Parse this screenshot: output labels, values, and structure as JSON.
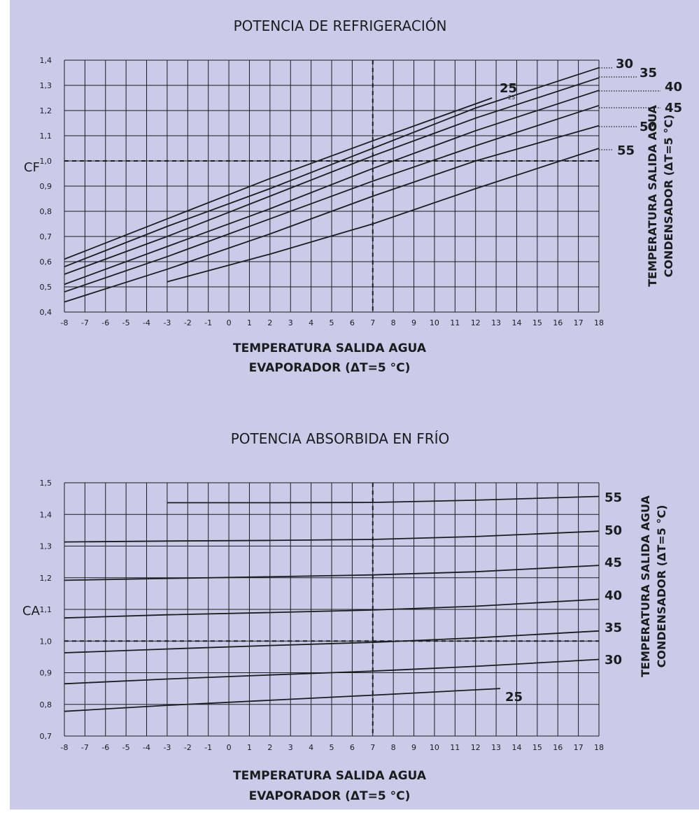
{
  "colors": {
    "background": "#c9cbe9",
    "grid": "#1c1c1c",
    "line": "#1c1c1c"
  },
  "chart_data": [
    {
      "type": "line",
      "title": "POTENCIA DE REFRIGERACIÓN",
      "ylabel": "CF",
      "xlabel": [
        "TEMPERATURA SALIDA AGUA",
        "EVAPORADOR (ΔT=5 °C)"
      ],
      "right_label": [
        "TEMPERATURA SALIDA AGUA",
        "CONDENSADOR (ΔT=5 °C)"
      ],
      "xlim": [
        -8,
        18
      ],
      "ylim": [
        0.4,
        1.4
      ],
      "x_ticks": [
        -8,
        -7,
        -6,
        -5,
        -4,
        -3,
        -2,
        -1,
        0,
        1,
        2,
        3,
        4,
        5,
        6,
        7,
        8,
        9,
        10,
        11,
        12,
        13,
        14,
        15,
        16,
        17,
        18
      ],
      "y_ticks": [
        "0,4",
        "0,5",
        "0,6",
        "0,7",
        "0,8",
        "0,9",
        "1,0",
        "1,1",
        "1,2",
        "1,3",
        "1,4"
      ],
      "grid": true,
      "reference_lines": {
        "x": 7,
        "y": 1.0
      },
      "series": [
        {
          "name": "25",
          "points": [
            [
              -8,
              0.61
            ],
            [
              -3,
              0.77
            ],
            [
              2,
              0.93
            ],
            [
              7,
              1.08
            ],
            [
              12.8,
              1.25
            ]
          ]
        },
        {
          "name": "30",
          "points": [
            [
              -8,
              0.58
            ],
            [
              -3,
              0.74
            ],
            [
              2,
              0.89
            ],
            [
              7,
              1.05
            ],
            [
              12,
              1.21
            ],
            [
              18,
              1.37
            ]
          ]
        },
        {
          "name": "35",
          "points": [
            [
              -8,
              0.55
            ],
            [
              -3,
              0.7
            ],
            [
              2,
              0.86
            ],
            [
              7,
              1.02
            ],
            [
              12,
              1.17
            ],
            [
              18,
              1.33
            ]
          ]
        },
        {
          "name": "40",
          "points": [
            [
              -8,
              0.51
            ],
            [
              -3,
              0.66
            ],
            [
              2,
              0.81
            ],
            [
              7,
              0.97
            ],
            [
              12,
              1.12
            ],
            [
              18,
              1.28
            ]
          ]
        },
        {
          "name": "45",
          "points": [
            [
              -8,
              0.48
            ],
            [
              -3,
              0.62
            ],
            [
              2,
              0.77
            ],
            [
              7,
              0.92
            ],
            [
              12,
              1.06
            ],
            [
              18,
              1.22
            ]
          ]
        },
        {
          "name": "50",
          "points": [
            [
              -8,
              0.44
            ],
            [
              -3,
              0.57
            ],
            [
              2,
              0.71
            ],
            [
              7,
              0.86
            ],
            [
              12,
              1.0
            ],
            [
              18,
              1.14
            ]
          ]
        },
        {
          "name": "55",
          "points": [
            [
              -3,
              0.52
            ],
            [
              2,
              0.63
            ],
            [
              7,
              0.75
            ],
            [
              12,
              0.89
            ],
            [
              18,
              1.05
            ]
          ]
        }
      ]
    },
    {
      "type": "line",
      "title": "POTENCIA ABSORBIDA EN FRÍO",
      "ylabel": "CA",
      "xlabel": [
        "TEMPERATURA SALIDA AGUA",
        "EVAPORADOR (ΔT=5 °C)"
      ],
      "right_label": [
        "TEMPERATURA SALIDA AGUA",
        "CONDENSADOR (ΔT=5 °C)"
      ],
      "xlim": [
        -8,
        18
      ],
      "ylim": [
        0.7,
        1.5
      ],
      "x_ticks": [
        -8,
        -7,
        -6,
        -5,
        -4,
        -3,
        -2,
        -1,
        0,
        1,
        2,
        3,
        4,
        5,
        6,
        7,
        8,
        9,
        10,
        11,
        12,
        13,
        14,
        15,
        16,
        17,
        18
      ],
      "y_ticks": [
        "0,7",
        "0,8",
        "0,9",
        "1,0",
        "1,1",
        "1,2",
        "1,3",
        "1,4",
        "1,5"
      ],
      "grid": true,
      "reference_lines": {
        "x": 7,
        "y": 1.0
      },
      "series": [
        {
          "name": "55",
          "points": [
            [
              -3,
              1.437
            ],
            [
              2,
              1.437
            ],
            [
              7,
              1.438
            ],
            [
              12,
              1.445
            ],
            [
              18,
              1.457
            ]
          ]
        },
        {
          "name": "50",
          "points": [
            [
              -8,
              1.313
            ],
            [
              -3,
              1.316
            ],
            [
              2,
              1.318
            ],
            [
              7,
              1.321
            ],
            [
              12,
              1.33
            ],
            [
              18,
              1.347
            ]
          ]
        },
        {
          "name": "45",
          "points": [
            [
              -8,
              1.192
            ],
            [
              -3,
              1.198
            ],
            [
              2,
              1.203
            ],
            [
              7,
              1.209
            ],
            [
              12,
              1.219
            ],
            [
              18,
              1.239
            ]
          ]
        },
        {
          "name": "40",
          "points": [
            [
              -8,
              1.073
            ],
            [
              -3,
              1.083
            ],
            [
              2,
              1.09
            ],
            [
              7,
              1.098
            ],
            [
              12,
              1.11
            ],
            [
              18,
              1.132
            ]
          ]
        },
        {
          "name": "35",
          "points": [
            [
              -8,
              0.963
            ],
            [
              -3,
              0.975
            ],
            [
              2,
              0.986
            ],
            [
              7,
              0.996
            ],
            [
              12,
              1.01
            ],
            [
              18,
              1.032
            ]
          ]
        },
        {
          "name": "30",
          "points": [
            [
              -8,
              0.865
            ],
            [
              -3,
              0.88
            ],
            [
              2,
              0.893
            ],
            [
              7,
              0.905
            ],
            [
              12,
              0.92
            ],
            [
              18,
              0.942
            ]
          ]
        },
        {
          "name": "25",
          "points": [
            [
              -8,
              0.778
            ],
            [
              -3,
              0.797
            ],
            [
              2,
              0.813
            ],
            [
              7,
              0.829
            ],
            [
              13.2,
              0.85
            ]
          ]
        }
      ]
    }
  ]
}
